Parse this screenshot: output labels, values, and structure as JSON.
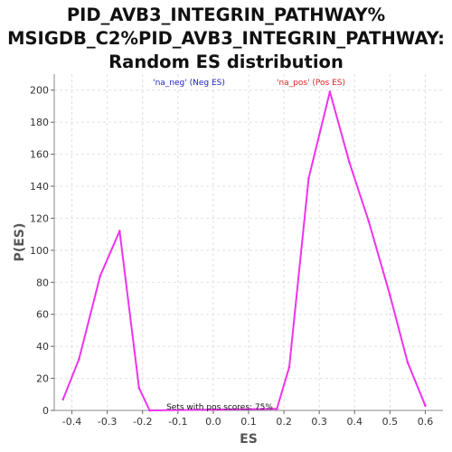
{
  "chart_data": {
    "type": "line",
    "title_lines": [
      "PID_AVB3_INTEGRIN_PATHWAY%",
      "MSIGDB_C2%PID_AVB3_INTEGRIN_PATHWAY:",
      "Random ES distribution"
    ],
    "xlabel": "ES",
    "ylabel": "P(ES)",
    "xlim": [
      -0.45,
      0.65
    ],
    "ylim": [
      0,
      210
    ],
    "xticks": [
      -0.4,
      -0.3,
      -0.2,
      -0.1,
      0.0,
      0.1,
      0.2,
      0.3,
      0.4,
      0.5,
      0.6
    ],
    "xtick_labels": [
      "-0.4",
      "-0.3",
      "-0.2",
      "-0.1",
      "0.0",
      "0.1",
      "0.2",
      "0.3",
      "0.4",
      "0.5",
      "0.6"
    ],
    "yticks": [
      0,
      20,
      40,
      60,
      80,
      100,
      120,
      140,
      160,
      180,
      200
    ],
    "ytick_labels": [
      "0",
      "20",
      "40",
      "60",
      "80",
      "100",
      "120",
      "140",
      "160",
      "180",
      "200"
    ],
    "grid": true,
    "series": [
      {
        "color": "#ee33ee",
        "x": [
          -0.425,
          -0.38,
          -0.32,
          -0.265,
          -0.21,
          -0.18,
          0.18,
          0.215,
          0.27,
          0.33,
          0.385,
          0.44,
          0.5,
          0.55,
          0.6
        ],
        "y": [
          7,
          32,
          84,
          112,
          14,
          0,
          1,
          27,
          145,
          199,
          155,
          118,
          72,
          30,
          3
        ]
      }
    ],
    "annotations": {
      "neg_label": "'na_neg' (Neg ES)",
      "pos_label": "'na_pos' (Pos ES)",
      "footer": "Sets with pos scores: 75%"
    },
    "colors": {
      "neg": "#2222cc",
      "pos": "#dd2222",
      "line": "#ee33ee",
      "plot_bg": "#ffffff",
      "grid": "#e0e0e0"
    }
  }
}
